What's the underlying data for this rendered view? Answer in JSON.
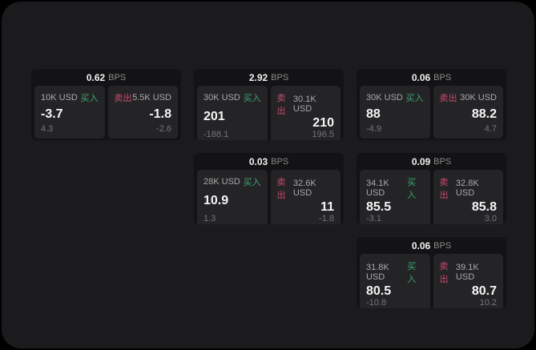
{
  "theme": {
    "buy_color": "#3fa56b",
    "sell_color": "#c9496b",
    "panel_bg": "#1b1b1d",
    "card_bg": "#131315",
    "tile_bg": "#242427"
  },
  "labels": {
    "buy": "买入",
    "sell": "卖出",
    "bps_unit": "BPS"
  },
  "cards": [
    {
      "bps": "0.62",
      "buy": {
        "amount": "10K USD",
        "value": "-3.7",
        "delta": "4.3"
      },
      "sell": {
        "amount": "5.5K USD",
        "value": "-1.8",
        "delta": "-2.6"
      }
    },
    {
      "bps": "2.92",
      "buy": {
        "amount": "30K USD",
        "value": "201",
        "delta": "-188.1"
      },
      "sell": {
        "amount": "30.1K USD",
        "value": "210",
        "delta": "196.5"
      }
    },
    {
      "bps": "0.06",
      "buy": {
        "amount": "30K USD",
        "value": "88",
        "delta": "-4.9"
      },
      "sell": {
        "amount": "30K USD",
        "value": "88.2",
        "delta": "4.7"
      }
    },
    {
      "bps": "0.03",
      "buy": {
        "amount": "28K USD",
        "value": "10.9",
        "delta": "1.3"
      },
      "sell": {
        "amount": "32.6K USD",
        "value": "11",
        "delta": "-1.8"
      }
    },
    {
      "bps": "0.09",
      "buy": {
        "amount": "34.1K USD",
        "value": "85.5",
        "delta": "-3.1"
      },
      "sell": {
        "amount": "32.8K USD",
        "value": "85.8",
        "delta": "3.0"
      }
    },
    {
      "bps": "0.06",
      "buy": {
        "amount": "31.8K USD",
        "value": "80.5",
        "delta": "-10.8"
      },
      "sell": {
        "amount": "39.1K USD",
        "value": "80.7",
        "delta": "10.2"
      }
    }
  ]
}
